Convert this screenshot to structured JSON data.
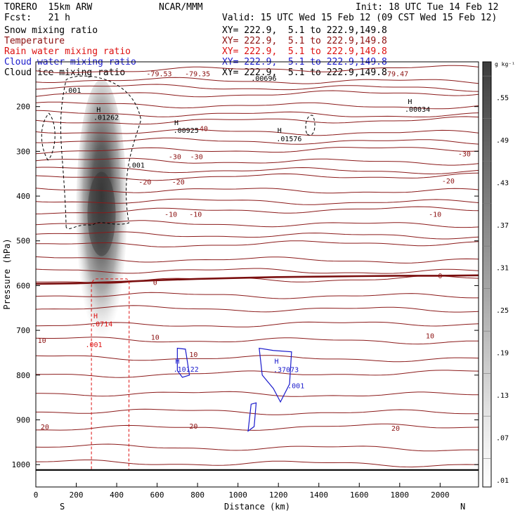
{
  "header": {
    "model": "TORERO  15km ARW",
    "org": "NCAR/MMM",
    "init": "Init: 18 UTC Tue 14 Feb 12",
    "fcst": "Fcst:   21 h",
    "valid": "Valid: 15 UTC Wed 15 Feb 12 (09 CST Wed 15 Feb 12)"
  },
  "legend_rows": [
    {
      "label": "Snow mixing ratio",
      "xy": "XY= 222.9,  5.1 to 222.9,149.8",
      "color": "#000000"
    },
    {
      "label": "Temperature",
      "xy": "XY= 222.9,  5.1 to 222.9,149.8",
      "color": "#8b1010"
    },
    {
      "label": "Rain water mixing ratio",
      "xy": "XY= 222.9,  5.1 to 222.9,149.8",
      "color": "#dd1010"
    },
    {
      "label": "Cloud water mixing ratio",
      "xy": "XY= 222.9,  5.1 to 222.9,149.8",
      "color": "#1a1acc"
    },
    {
      "label": "Cloud ice mixing ratio",
      "xy": "XY= 222.9,  5.1 to 222.9,149.8",
      "color": "#000000"
    }
  ],
  "chart_data": {
    "type": "cross-section",
    "title": "TORERO 15km ARW",
    "xlabel": "Distance (km)",
    "ylabel": "Pressure (hPa)",
    "xlim": [
      0,
      2190
    ],
    "ylim": [
      1050,
      100
    ],
    "x_ticks": [
      0,
      200,
      400,
      600,
      800,
      1000,
      1200,
      1400,
      1600,
      1800,
      2000
    ],
    "y_ticks": [
      200,
      300,
      400,
      500,
      600,
      700,
      800,
      900,
      1000
    ],
    "x_end_labels": {
      "left": "S",
      "right": "N"
    },
    "colorbar": {
      "unit": "g kg⁻¹",
      "ticks": [
        ".55",
        ".49",
        ".43",
        ".37",
        ".31",
        ".25",
        ".19",
        ".13",
        ".07",
        ".01"
      ],
      "tick_values": [
        0.55,
        0.49,
        0.43,
        0.37,
        0.31,
        0.25,
        0.19,
        0.13,
        0.07,
        0.01
      ],
      "range": [
        0,
        0.6
      ]
    },
    "temperature_isotherms_p": [
      120,
      140,
      155,
      175,
      195,
      215,
      235,
      255,
      275,
      300,
      320,
      340,
      360,
      385,
      410,
      435,
      460,
      485,
      510,
      540,
      565,
      590,
      620,
      650,
      690,
      720,
      760,
      800,
      840,
      880,
      920,
      960,
      995
    ],
    "temperature_labels": [
      {
        "text": "-79.53",
        "x": 610,
        "p": 126
      },
      {
        "text": "-79.35",
        "x": 800,
        "p": 126
      },
      {
        "text": "-79.47",
        "x": 1780,
        "p": 126
      },
      {
        "text": "-40",
        "x": 820,
        "p": 248
      },
      {
        "text": "-30",
        "x": 688,
        "p": 311
      },
      {
        "text": "-30",
        "x": 795,
        "p": 311
      },
      {
        "text": "-30",
        "x": 2120,
        "p": 305
      },
      {
        "text": "-20",
        "x": 540,
        "p": 368
      },
      {
        "text": "-20",
        "x": 705,
        "p": 368
      },
      {
        "text": "-20",
        "x": 2040,
        "p": 365
      },
      {
        "text": "-10",
        "x": 668,
        "p": 440
      },
      {
        "text": "-10",
        "x": 790,
        "p": 440
      },
      {
        "text": "-10",
        "x": 1975,
        "p": 440
      },
      {
        "text": "0",
        "x": 590,
        "p": 592
      },
      {
        "text": "0",
        "x": 2000,
        "p": 577
      },
      {
        "text": "10",
        "x": 30,
        "p": 722
      },
      {
        "text": "10",
        "x": 590,
        "p": 715
      },
      {
        "text": "10",
        "x": 780,
        "p": 753
      },
      {
        "text": "10",
        "x": 1950,
        "p": 712
      },
      {
        "text": "20",
        "x": 45,
        "p": 915
      },
      {
        "text": "20",
        "x": 780,
        "p": 913
      },
      {
        "text": "20",
        "x": 1780,
        "p": 918
      }
    ],
    "freezing_level_p": [
      596,
      595,
      592,
      588,
      585,
      583,
      581,
      580,
      579,
      578,
      578,
      577
    ],
    "surface_p": 1012,
    "annotations": [
      {
        "text": "H",
        "x": 300,
        "p": 206,
        "color": "#000000"
      },
      {
        "text": ".01262",
        "x": 285,
        "p": 223,
        "color": "#000000"
      },
      {
        "text": ".001",
        "x": 140,
        "p": 163,
        "color": "#000000"
      },
      {
        "text": ".001",
        "x": 455,
        "p": 330,
        "color": "#000000"
      },
      {
        "text": "H",
        "x": 685,
        "p": 235,
        "color": "#000000"
      },
      {
        "text": ".00925",
        "x": 680,
        "p": 252,
        "color": "#000000"
      },
      {
        "text": "H",
        "x": 1195,
        "p": 252,
        "color": "#000000"
      },
      {
        "text": ".01576",
        "x": 1190,
        "p": 271,
        "color": "#000000"
      },
      {
        "text": "H",
        "x": 1840,
        "p": 188,
        "color": "#000000"
      },
      {
        "text": ".00034",
        "x": 1825,
        "p": 205,
        "color": "#000000"
      },
      {
        "text": ".00696",
        "x": 1065,
        "p": 136,
        "color": "#000000"
      },
      {
        "text": "H",
        "x": 285,
        "p": 667,
        "color": "#dd1010"
      },
      {
        "text": ".0714",
        "x": 275,
        "p": 685,
        "color": "#dd1010"
      },
      {
        "text": ".001",
        "x": 245,
        "p": 731,
        "color": "#dd1010"
      },
      {
        "text": "H",
        "x": 690,
        "p": 768,
        "color": "#1a1acc"
      },
      {
        "text": ".10122",
        "x": 680,
        "p": 786,
        "color": "#1a1acc"
      },
      {
        "text": "H",
        "x": 1180,
        "p": 768,
        "color": "#1a1acc"
      },
      {
        "text": ".37073",
        "x": 1175,
        "p": 787,
        "color": "#1a1acc"
      },
      {
        "text": ".001",
        "x": 1245,
        "p": 823,
        "color": "#1a1acc"
      }
    ],
    "snow_shading_max_gkg": 0.55,
    "shaded_field": "Snow mixing ratio"
  }
}
